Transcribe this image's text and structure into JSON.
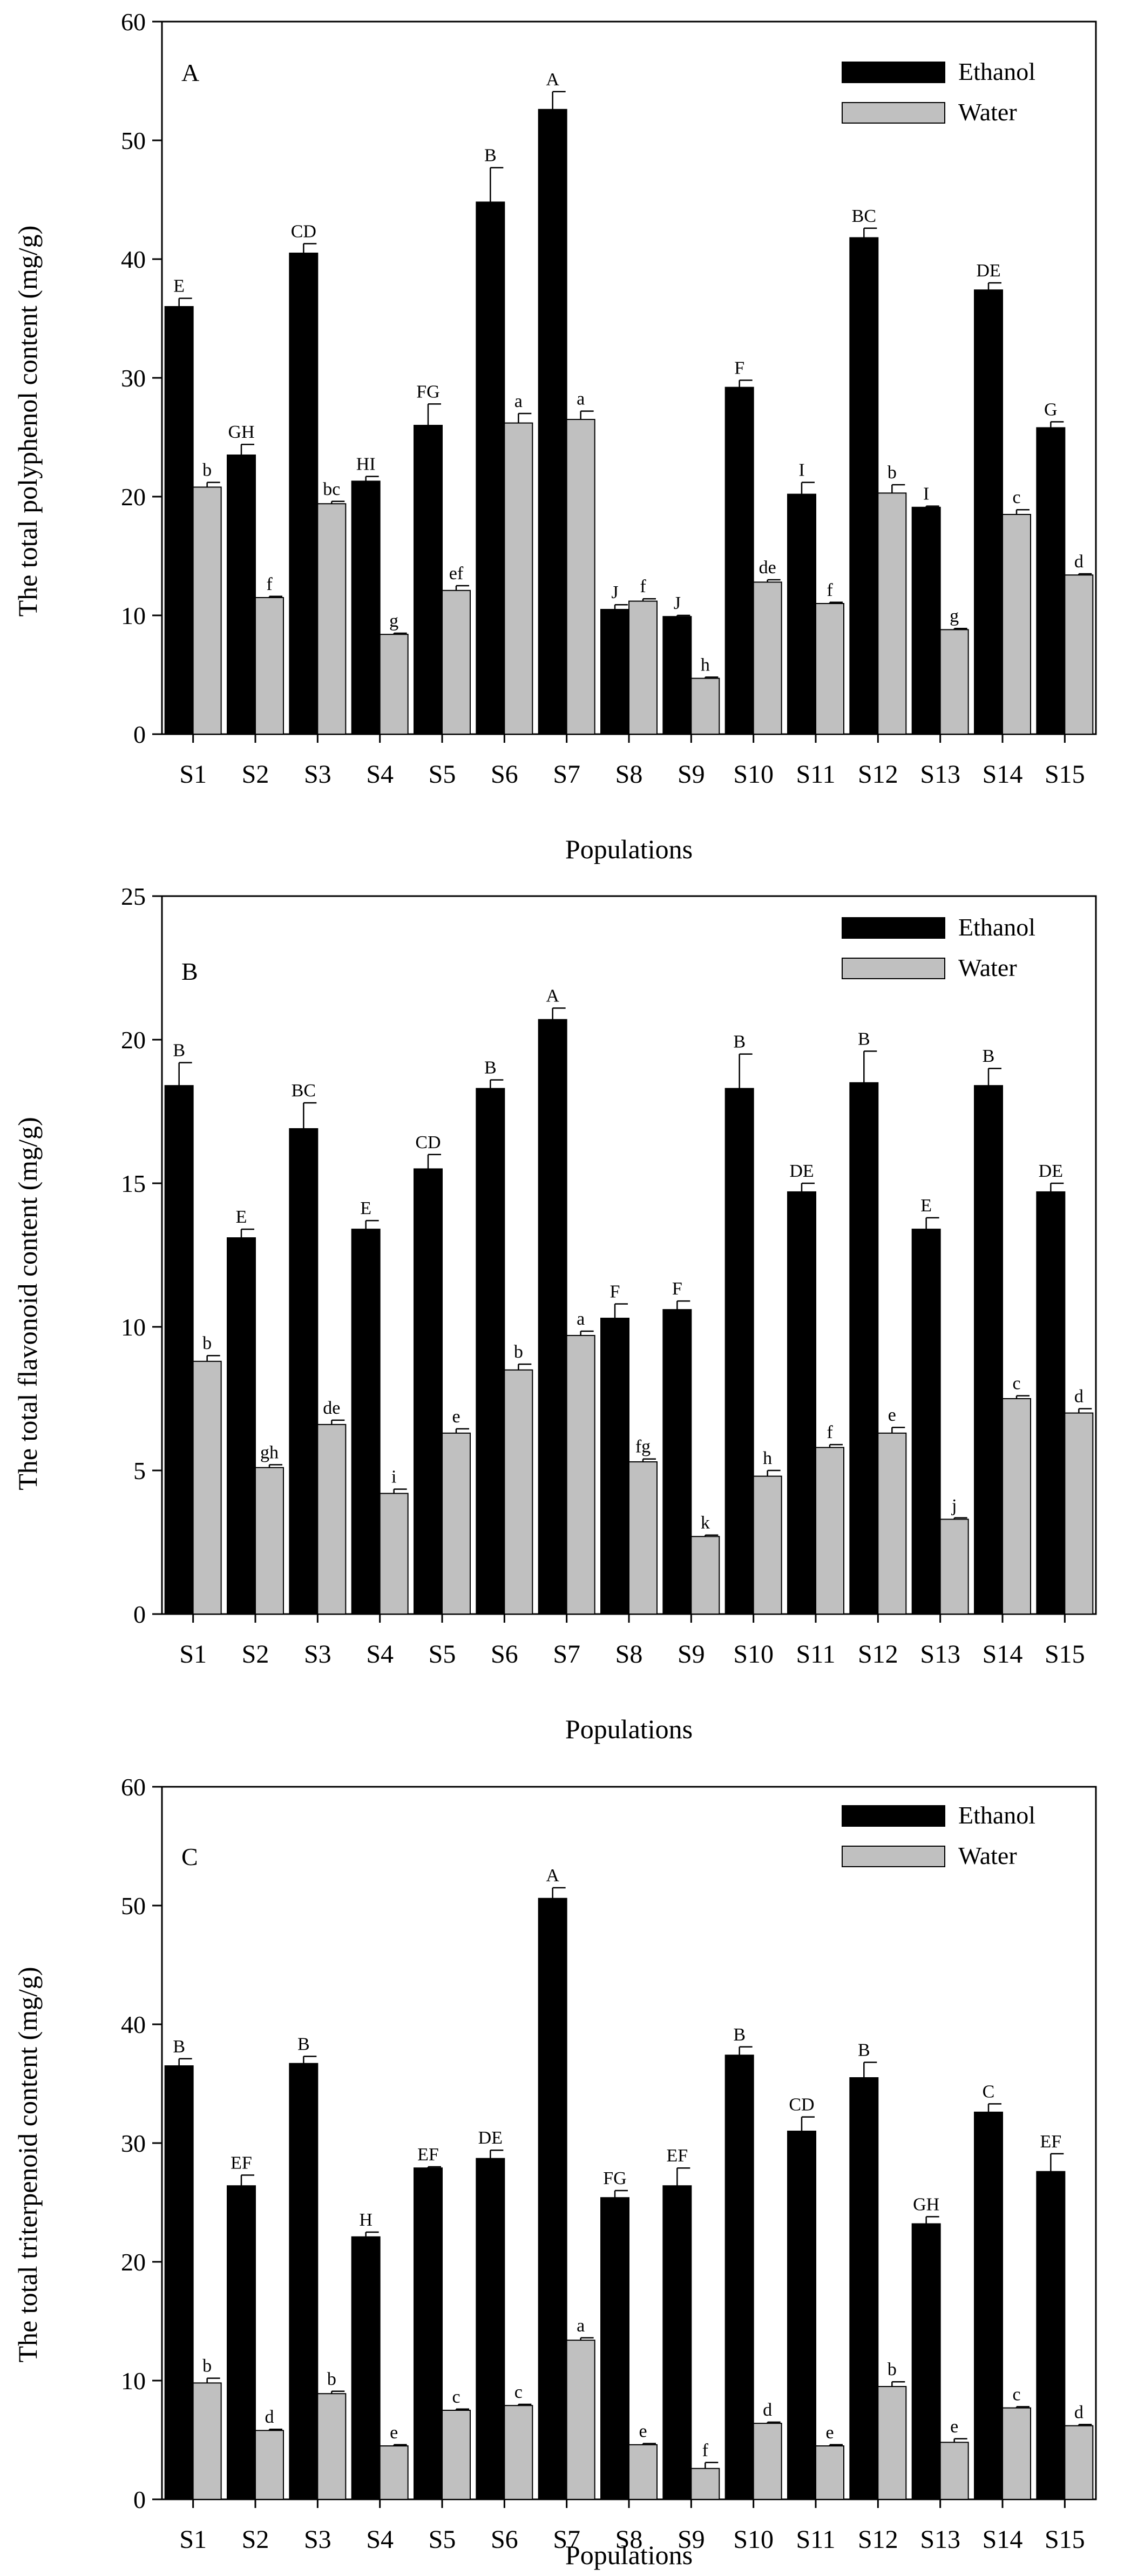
{
  "figure_title": "",
  "chart_data": [
    {
      "type": "bar",
      "panel_label": "A",
      "title": "",
      "xlabel": "Populations",
      "ylabel": "The total polyphenol content (mg/g)",
      "ylim": [
        0,
        60
      ],
      "yticks": [
        0,
        10,
        20,
        30,
        40,
        50,
        60
      ],
      "categories": [
        "S1",
        "S2",
        "S3",
        "S4",
        "S5",
        "S6",
        "S7",
        "S8",
        "S9",
        "S10",
        "S11",
        "S12",
        "S13",
        "S14",
        "S15"
      ],
      "legend_position": "top-right",
      "series": [
        {
          "name": "Ethanol",
          "color": "#000000",
          "values": [
            36.0,
            23.5,
            40.5,
            21.3,
            26.0,
            44.8,
            52.6,
            10.5,
            9.9,
            29.2,
            20.2,
            41.8,
            19.1,
            37.4,
            25.8
          ],
          "errors": [
            0.7,
            0.9,
            0.8,
            0.4,
            1.8,
            2.9,
            1.5,
            0.4,
            0.1,
            0.6,
            1.0,
            0.8,
            0.1,
            0.6,
            0.5
          ],
          "letters": [
            "E",
            "GH",
            "CD",
            "HI",
            "FG",
            "B",
            "A",
            "J",
            "J",
            "F",
            "I",
            "BC",
            "I",
            "DE",
            "G"
          ]
        },
        {
          "name": "Water",
          "color": "#c0c0c0",
          "values": [
            20.8,
            11.5,
            19.4,
            8.4,
            12.1,
            26.2,
            26.5,
            11.2,
            4.7,
            12.8,
            11.0,
            20.3,
            8.8,
            18.5,
            13.4
          ],
          "errors": [
            0.4,
            0.1,
            0.2,
            0.1,
            0.4,
            0.8,
            0.7,
            0.2,
            0.1,
            0.2,
            0.1,
            0.7,
            0.1,
            0.4,
            0.1
          ],
          "letters": [
            "b",
            "f",
            "bc",
            "g",
            "ef",
            "a",
            "a",
            "f",
            "h",
            "de",
            "f",
            "b",
            "g",
            "c",
            "d"
          ]
        }
      ]
    },
    {
      "type": "bar",
      "panel_label": "B",
      "title": "",
      "xlabel": "Populations",
      "ylabel": "The total flavonoid content (mg/g)",
      "ylim": [
        0,
        25
      ],
      "yticks": [
        0,
        5,
        10,
        15,
        20,
        25
      ],
      "categories": [
        "S1",
        "S2",
        "S3",
        "S4",
        "S5",
        "S6",
        "S7",
        "S8",
        "S9",
        "S10",
        "S11",
        "S12",
        "S13",
        "S14",
        "S15"
      ],
      "legend_position": "top-right",
      "series": [
        {
          "name": "Ethanol",
          "color": "#000000",
          "values": [
            18.4,
            13.1,
            16.9,
            13.4,
            15.5,
            18.3,
            20.7,
            10.3,
            10.6,
            18.3,
            14.7,
            18.5,
            13.4,
            18.4,
            14.7
          ],
          "errors": [
            0.8,
            0.3,
            0.9,
            0.3,
            0.5,
            0.3,
            0.4,
            0.5,
            0.3,
            1.2,
            0.3,
            1.1,
            0.4,
            0.6,
            0.3
          ],
          "letters": [
            "B",
            "E",
            "BC",
            "E",
            "CD",
            "B",
            "A",
            "F",
            "F",
            "B",
            "DE",
            "B",
            "E",
            "B",
            "DE"
          ]
        },
        {
          "name": "Water",
          "color": "#c0c0c0",
          "values": [
            8.8,
            5.1,
            6.6,
            4.2,
            6.3,
            8.5,
            9.7,
            5.3,
            2.7,
            4.8,
            5.8,
            6.3,
            3.3,
            7.5,
            7.0
          ],
          "errors": [
            0.2,
            0.1,
            0.15,
            0.15,
            0.15,
            0.2,
            0.15,
            0.1,
            0.05,
            0.2,
            0.1,
            0.2,
            0.05,
            0.1,
            0.15
          ],
          "letters": [
            "b",
            "gh",
            "de",
            "i",
            "e",
            "b",
            "a",
            "fg",
            "k",
            "h",
            "f",
            "e",
            "j",
            "c",
            "d"
          ]
        }
      ]
    },
    {
      "type": "bar",
      "panel_label": "C",
      "title": "",
      "xlabel": "Populations",
      "ylabel": "The total triterpenoid content (mg/g)",
      "ylim": [
        0,
        60
      ],
      "yticks": [
        0,
        10,
        20,
        30,
        40,
        50,
        60
      ],
      "categories": [
        "S1",
        "S2",
        "S3",
        "S4",
        "S5",
        "S6",
        "S7",
        "S8",
        "S9",
        "S10",
        "S11",
        "S12",
        "S13",
        "S14",
        "S15"
      ],
      "legend_position": "top-right",
      "series": [
        {
          "name": "Ethanol",
          "color": "#000000",
          "values": [
            36.5,
            26.4,
            36.7,
            22.1,
            27.9,
            28.7,
            50.6,
            25.4,
            26.4,
            37.4,
            31.0,
            35.5,
            23.2,
            32.6,
            27.6
          ],
          "errors": [
            0.6,
            0.9,
            0.6,
            0.4,
            0.1,
            0.7,
            0.9,
            0.6,
            1.5,
            0.7,
            1.2,
            1.3,
            0.6,
            0.7,
            1.5
          ],
          "letters": [
            "B",
            "EF",
            "B",
            "H",
            "EF",
            "DE",
            "A",
            "FG",
            "EF",
            "B",
            "CD",
            "B",
            "GH",
            "C",
            "EF"
          ]
        },
        {
          "name": "Water",
          "color": "#c0c0c0",
          "values": [
            9.8,
            5.8,
            8.9,
            4.5,
            7.5,
            7.9,
            13.4,
            4.6,
            2.6,
            6.4,
            4.5,
            9.5,
            4.8,
            7.7,
            6.2
          ],
          "errors": [
            0.4,
            0.1,
            0.2,
            0.1,
            0.1,
            0.1,
            0.2,
            0.1,
            0.5,
            0.1,
            0.1,
            0.4,
            0.3,
            0.1,
            0.1
          ],
          "letters": [
            "b",
            "d",
            "b",
            "e",
            "c",
            "c",
            "a",
            "e",
            "f",
            "d",
            "e",
            "b",
            "e",
            "c",
            "d"
          ]
        }
      ]
    }
  ]
}
